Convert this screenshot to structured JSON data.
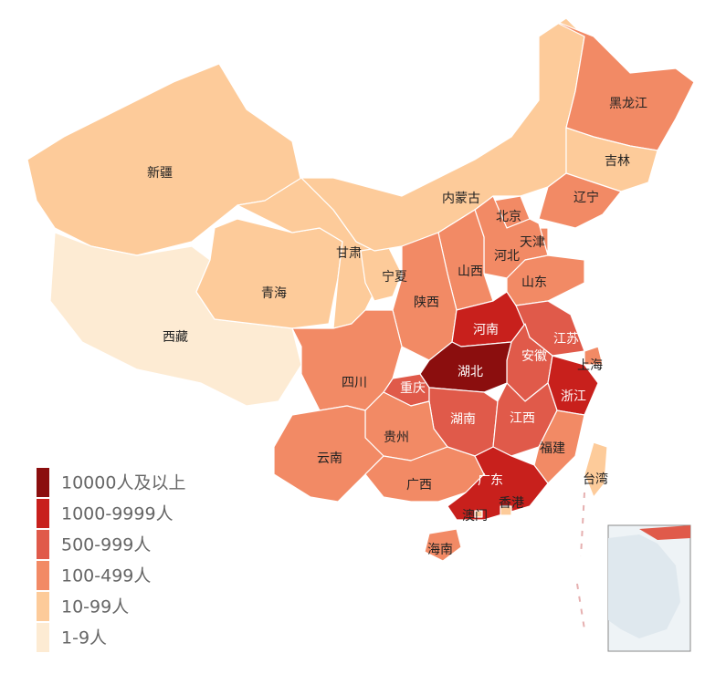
{
  "provinces": [
    {
      "name": "新疆",
      "color": "#fdcb9a"
    },
    {
      "name": "西藏",
      "color": "#fdebd3"
    },
    {
      "name": "青海",
      "color": "#fdcb9a"
    },
    {
      "name": "甘肃",
      "color": "#fdcb9a"
    },
    {
      "name": "宁夏",
      "color": "#fdcb9a"
    },
    {
      "name": "内蒙古",
      "color": "#fdcb9a"
    },
    {
      "name": "黑龙江",
      "color": "#f28a65"
    },
    {
      "name": "吉林",
      "color": "#fdcb9a"
    },
    {
      "name": "辽宁",
      "color": "#f28a65"
    },
    {
      "name": "北京",
      "color": "#f28a65"
    },
    {
      "name": "天津",
      "color": "#f28a65"
    },
    {
      "name": "河北",
      "color": "#f28a65"
    },
    {
      "name": "山西",
      "color": "#f28a65"
    },
    {
      "name": "山东",
      "color": "#f28a65"
    },
    {
      "name": "陕西",
      "color": "#f28a65"
    },
    {
      "name": "河南",
      "color": "#c8201c"
    },
    {
      "name": "江苏",
      "color": "#e05a4a"
    },
    {
      "name": "安徽",
      "color": "#e05a4a"
    },
    {
      "name": "上海",
      "color": "#f28a65"
    },
    {
      "name": "浙江",
      "color": "#c8201c"
    },
    {
      "name": "湖北",
      "color": "#8b0e0e"
    },
    {
      "name": "重庆",
      "color": "#e05a4a"
    },
    {
      "name": "四川",
      "color": "#f28a65"
    },
    {
      "name": "湖南",
      "color": "#e05a4a"
    },
    {
      "name": "江西",
      "color": "#e05a4a"
    },
    {
      "name": "福建",
      "color": "#f28a65"
    },
    {
      "name": "贵州",
      "color": "#f28a65"
    },
    {
      "name": "云南",
      "color": "#f28a65"
    },
    {
      "name": "广西",
      "color": "#f28a65"
    },
    {
      "name": "广东",
      "color": "#c8201c"
    },
    {
      "name": "海南",
      "color": "#f28a65"
    },
    {
      "name": "香港",
      "color": "#fdcb9a"
    },
    {
      "name": "澳门",
      "color": "#fdcb9a"
    },
    {
      "name": "台湾",
      "color": "#fdcb9a"
    }
  ],
  "legend": [
    {
      "label": "10000人及以上",
      "color": "#8b0e0e"
    },
    {
      "label": "1000-9999人",
      "color": "#c8201c"
    },
    {
      "label": "500-999人",
      "color": "#e05a4a"
    },
    {
      "label": "100-499人",
      "color": "#f28a65"
    },
    {
      "label": "10-99人",
      "color": "#fdcb9a"
    },
    {
      "label": "1-9人",
      "color": "#fdebd3"
    }
  ]
}
